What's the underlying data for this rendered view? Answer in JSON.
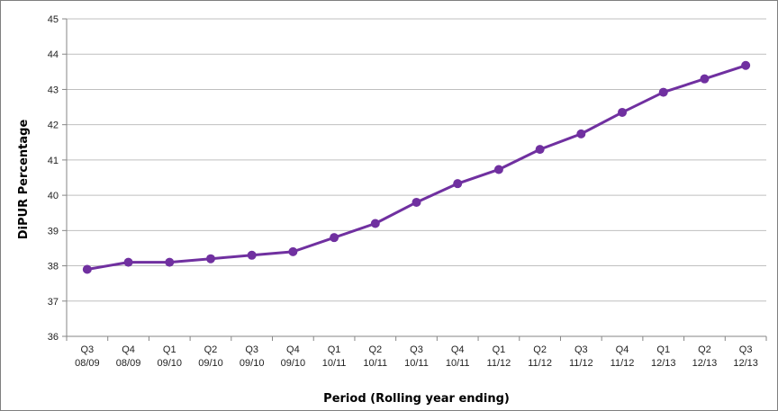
{
  "chart_data": {
    "type": "line",
    "title": "",
    "xlabel": "Period (Rolling year ending)",
    "ylabel": "DiPUR Percentage",
    "ylim": [
      36,
      45
    ],
    "yticks": [
      36,
      37,
      38,
      39,
      40,
      41,
      42,
      43,
      44,
      45
    ],
    "grid": true,
    "legend": "none",
    "categories": [
      [
        "Q3",
        "08/09"
      ],
      [
        "Q4",
        "08/09"
      ],
      [
        "Q1",
        "09/10"
      ],
      [
        "Q2",
        "09/10"
      ],
      [
        "Q3",
        "09/10"
      ],
      [
        "Q4",
        "09/10"
      ],
      [
        "Q1",
        "10/11"
      ],
      [
        "Q2",
        "10/11"
      ],
      [
        "Q3",
        "10/11"
      ],
      [
        "Q4",
        "10/11"
      ],
      [
        "Q1",
        "11/12"
      ],
      [
        "Q2",
        "11/12"
      ],
      [
        "Q3",
        "11/12"
      ],
      [
        "Q4",
        "11/12"
      ],
      [
        "Q1",
        "12/13"
      ],
      [
        "Q2",
        "12/13"
      ],
      [
        "Q3",
        "12/13"
      ]
    ],
    "series": [
      {
        "color": "#7030a0",
        "values": [
          37.9,
          38.1,
          38.1,
          38.2,
          38.3,
          38.4,
          38.8,
          39.2,
          39.8,
          40.33,
          40.73,
          41.3,
          41.74,
          42.35,
          42.92,
          43.3,
          43.68
        ]
      }
    ]
  }
}
